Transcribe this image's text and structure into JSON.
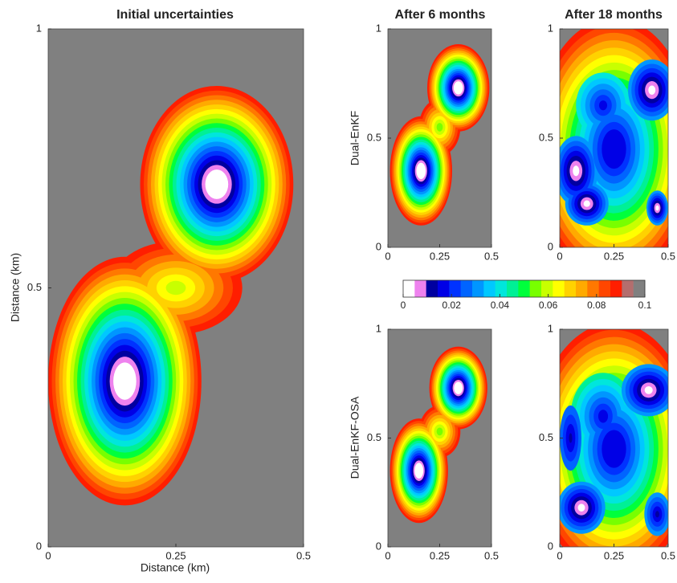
{
  "chart_data": [
    {
      "type": "contour",
      "title": "Initial uncertainties",
      "xlabel": "Distance (km)",
      "ylabel": "Distance (km)",
      "xlim": [
        0,
        0.5
      ],
      "ylim": [
        0,
        1
      ],
      "xticks": [
        0,
        0.25,
        0.5
      ],
      "yticks": [
        0,
        0.5,
        1
      ]
    },
    {
      "type": "contour",
      "title": "After 6 months",
      "ylabel": "Dual-EnKF",
      "xlim": [
        0,
        0.5
      ],
      "ylim": [
        0,
        1
      ],
      "xticks": [
        0,
        0.25,
        0.5
      ],
      "yticks": [
        0,
        0.5,
        1
      ]
    },
    {
      "type": "contour",
      "title": "After 18 months",
      "xlim": [
        0,
        0.5
      ],
      "ylim": [
        0,
        1
      ],
      "xticks": [
        0,
        0.25,
        0.5
      ],
      "yticks": [
        0,
        0.5,
        1
      ]
    },
    {
      "type": "contour",
      "ylabel": "Dual-EnKF-OSA",
      "xlim": [
        0,
        0.5
      ],
      "ylim": [
        0,
        1
      ],
      "xticks": [
        0,
        0.25,
        0.5
      ],
      "yticks": [
        0,
        0.5,
        1
      ]
    },
    {
      "type": "contour",
      "xlim": [
        0,
        0.5
      ],
      "ylim": [
        0,
        1
      ],
      "xticks": [
        0,
        0.25,
        0.5
      ],
      "yticks": [
        0,
        0.5,
        1
      ]
    },
    {
      "type": "colorbar",
      "colors": [
        "#ffffff",
        "#ee82ee",
        "#0000a0",
        "#0000e6",
        "#0032ff",
        "#0064ff",
        "#0096ff",
        "#00c8ff",
        "#00e6dc",
        "#00f096",
        "#00ff3c",
        "#78ff00",
        "#c8ff00",
        "#ffff00",
        "#ffd200",
        "#ffaa00",
        "#ff7800",
        "#ff4600",
        "#ff1e00",
        "#b46e6e",
        "#808080"
      ],
      "lim": [
        0,
        0.1
      ],
      "ticks": [
        0,
        0.02,
        0.04,
        0.06,
        0.08,
        0.1
      ]
    }
  ]
}
